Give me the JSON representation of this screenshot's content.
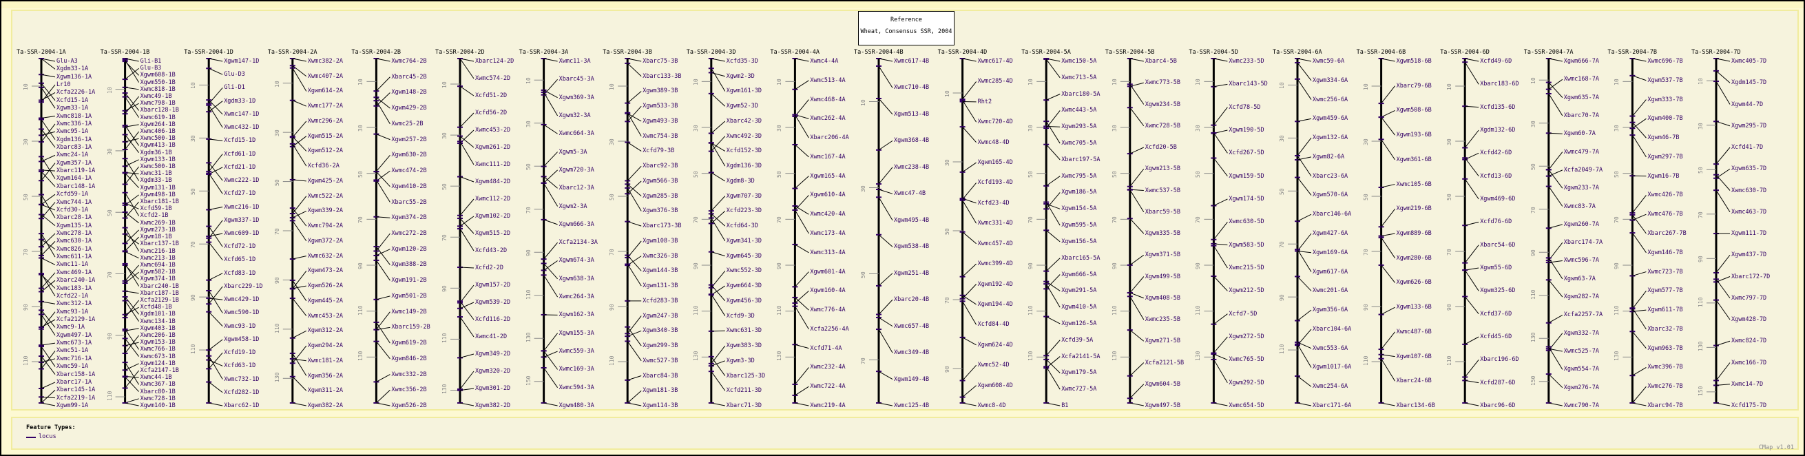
{
  "reference": {
    "title": "Reference",
    "map_set": "Wheat, Consensus SSR, 2004"
  },
  "legend": {
    "title": "Feature Types:",
    "items": [
      {
        "label": "locus",
        "color": "#330066"
      }
    ]
  },
  "footer": "CMap v1.01",
  "colors": {
    "locus_text": "#330066",
    "background": "#f6f3dd",
    "border": "#f1ec9e"
  },
  "maps": [
    {
      "name": "Ta-SSR-2004-1A",
      "length_cm": 125,
      "loci": [
        "Glu-A3",
        "Xgdm33-1A",
        "Xgwm136-1A",
        "Lr10",
        "Xcfa2226-1A",
        "Xcfd15-1A",
        "Xgwm33-1A",
        "Xwmc818-1A",
        "Xwmc336-1A",
        "Xwmc95-1A",
        "Xgdm136-1A",
        "Xbarc83-1A",
        "Xwmc24-1A",
        "Xgwm357-1A",
        "Xbarc119-1A",
        "Xgwm164-1A",
        "Xbarc148-1A",
        "Xcfd59-1A",
        "Xwmc744-1A",
        "Xcfd30-1A",
        "Xbarc28-1A",
        "Xgwm135-1A",
        "Xwmc278-1A",
        "Xwmc630-1A",
        "Xwmc826-1A",
        "Xwmc611-1A",
        "Xwmc11-1A",
        "Xwmc469-1A",
        "Xbarc240-1A",
        "Xwmc183-1A",
        "Xcfd22-1A",
        "Xwmc312-1A",
        "Xwmc93-1A",
        "Xcfa2129-1A",
        "Xwmc9-1A",
        "Xgwm497-1A",
        "Xwmc673-1A",
        "Xwmc51-1A",
        "Xwmc716-1A",
        "Xwmc59-1A",
        "Xbarc158-1A",
        "Xbarc17-1A",
        "Xbarc145-1A",
        "Xcfa2219-1A",
        "Xgwm99-1A"
      ]
    },
    {
      "name": "Ta-SSR-2004-1B",
      "length_cm": 112,
      "loci": [
        "Gli-B1",
        "Glu-B3",
        "Xgwm608-1B",
        "Xgwm550-1B",
        "Xwmc818-1B",
        "Xwmc49-1B",
        "Xwmc798-1B",
        "Xbarc128-1B",
        "Xwmc619-1B",
        "Xgwm264-1B",
        "Xwmc406-1B",
        "Xwmc500-1B",
        "Xgwm413-1B",
        "Xgdm36-1B",
        "Xgwm133-1B",
        "Xwmc500-1B",
        "Xwmc31-1B",
        "Xgdm33-1B",
        "Xgwm131-1B",
        "Xgwm498-1B",
        "Xbarc181-1B",
        "Xcfd59-1B",
        "Xcfd2-1B",
        "Xwmc269-1B",
        "Xgwm273-1B",
        "Xgwm18-1B",
        "Xbarc137-1B",
        "Xwmc216-1B",
        "Xwmc213-1B",
        "Xwmc694-1B",
        "Xgwm582-1B",
        "Xgwm374-1B",
        "Xbarc240-1B",
        "Xbarc187-1B",
        "Xcfa2129-1B",
        "Xcfd48-1B",
        "Xgdm101-1B",
        "Xwmc134-1B",
        "Xgwm403-1B",
        "Xwmc206-1B",
        "Xgwm153-1B",
        "Xwmc766-1B",
        "Xwmc673-1B",
        "Xgwm124-1B",
        "Xcfa2147-1B",
        "Xwmc44-1B",
        "Xwmc367-1B",
        "Xbarc80-1B",
        "Xwmc728-1B",
        "Xgwm140-1B"
      ]
    },
    {
      "name": "Ta-SSR-2004-1D",
      "length_cm": 130,
      "loci": [
        "Xgwm147-1D",
        "Glu-D3",
        "Gli-D1",
        "Xgdm33-1D",
        "Xwmc147-1D",
        "Xwmc432-1D",
        "Xcfd15-1D",
        "Xcfd61-1D",
        "Xcfd21-1D",
        "Xwmc222-1D",
        "Xcfd27-1D",
        "Xwmc216-1D",
        "Xgwm337-1D",
        "Xwmc609-1D",
        "Xcfd72-1D",
        "Xcfd65-1D",
        "Xcfd83-1D",
        "Xbarc229-1D",
        "Xwmc429-1D",
        "Xwmc590-1D",
        "Xwmc93-1D",
        "Xgwm458-1D",
        "Xcfd19-1D",
        "Xcfd63-1D",
        "Xwmc732-1D",
        "Xcfd282-1D",
        "Xbarc62-1D"
      ]
    },
    {
      "name": "Ta-SSR-2004-2A",
      "length_cm": 140,
      "loci": [
        "Xwmc382-2A",
        "Xwmc407-2A",
        "Xgwm614-2A",
        "Xwmc177-2A",
        "Xwmc296-2A",
        "Xgwm515-2A",
        "Xgwm512-2A",
        "Xcfd36-2A",
        "Xgwm425-2A",
        "Xwmc522-2A",
        "Xgwm339-2A",
        "Xwmc794-2A",
        "Xgwm372-2A",
        "Xwmc632-2A",
        "Xgwm473-2A",
        "Xgwm526-2A",
        "Xgwm445-2A",
        "Xwmc453-2A",
        "Xgwm312-2A",
        "Xgwm294-2A",
        "Xwmc181-2A",
        "Xgwm356-2A",
        "Xgwm311-2A",
        "Xgwm382-2A"
      ]
    },
    {
      "name": "Ta-SSR-2004-2B",
      "length_cm": 150,
      "loci": [
        "Xwmc764-2B",
        "Xbarc45-2B",
        "Xgwm148-2B",
        "Xgwm429-2B",
        "Xwmc25-2B",
        "Xgwm257-2B",
        "Xgwm630-2B",
        "Xwmc474-2B",
        "Xgwm410-2B",
        "Xbarc55-2B",
        "Xgwm374-2B",
        "Xwmc272-2B",
        "Xgwm120-2B",
        "Xgwm388-2B",
        "Xgwm191-2B",
        "Xgwm501-2B",
        "Xwmc149-2B",
        "Xbarc159-2B",
        "Xgwm619-2B",
        "Xgwm846-2B",
        "Xwmc332-2B",
        "Xwmc356-2B",
        "Xgwm526-2B"
      ]
    },
    {
      "name": "Ta-SSR-2004-2D",
      "length_cm": 135,
      "loci": [
        "Xbarc124-2D",
        "Xwmc574-2D",
        "Xcfd51-2D",
        "Xcfd56-2D",
        "Xwmc453-2D",
        "Xgwm261-2D",
        "Xwmc111-2D",
        "Xgwm484-2D",
        "Xwmc112-2D",
        "Xgwm102-2D",
        "Xgwm515-2D",
        "Xcfd43-2D",
        "Xcfd2-2D",
        "Xgwm157-2D",
        "Xgwm539-2D",
        "Xcfd116-2D",
        "Xwmc41-2D",
        "Xgwm349-2D",
        "Xgwm320-2D",
        "Xgwm301-2D",
        "Xgwm382-2D"
      ]
    },
    {
      "name": "Ta-SSR-2004-3A",
      "length_cm": 160,
      "loci": [
        "Xwmc11-3A",
        "Xbarc45-3A",
        "Xgwm369-3A",
        "Xgwm32-3A",
        "Xwmc664-3A",
        "Xgwm5-3A",
        "Xgwm720-3A",
        "Xbarc12-3A",
        "Xgwm2-3A",
        "Xgwm666-3A",
        "Xcfa2134-3A",
        "Xgwm674-3A",
        "Xgwm638-3A",
        "Xwmc264-3A",
        "Xgwm162-3A",
        "Xgwm155-3A",
        "Xwmc559-3A",
        "Xwmc169-3A",
        "Xwmc594-3A",
        "Xgwm480-3A"
      ]
    },
    {
      "name": "Ta-SSR-2004-3B",
      "length_cm": 125,
      "loci": [
        "Xbarc75-3B",
        "Xbarc133-3B",
        "Xgwm389-3B",
        "Xgwm533-3B",
        "Xgwm493-3B",
        "Xwmc754-3B",
        "Xcfd79-3B",
        "Xbarc92-3B",
        "Xgwm566-3B",
        "Xgwm285-3B",
        "Xgwm376-3B",
        "Xbarc173-3B",
        "Xgwm108-3B",
        "Xwmc326-3B",
        "Xgwm144-3B",
        "Xgwm131-3B",
        "Xcfd283-3B",
        "Xgwm247-3B",
        "Xgwm340-3B",
        "Xgwm299-3B",
        "Xwmc527-3B",
        "Xbarc84-3B",
        "Xgwm181-3B",
        "Xgwm114-3B"
      ]
    },
    {
      "name": "Ta-SSR-2004-3D",
      "length_cm": 150,
      "loci": [
        "Xcfd35-3D",
        "Xgwm2-3D",
        "Xgwm161-3D",
        "Xgwm52-3D",
        "Xbarc42-3D",
        "Xwmc492-3D",
        "Xcfd152-3D",
        "Xgdm136-3D",
        "Xgdm8-3D",
        "Xgwm707-3D",
        "Xcfd223-3D",
        "Xcfd64-3D",
        "Xgwm341-3D",
        "Xgwm645-3D",
        "Xwmc552-3D",
        "Xgwm664-3D",
        "Xgwm456-3D",
        "Xcfd9-3D",
        "Xwmc631-3D",
        "Xgwm383-3D",
        "Xgwm3-3D",
        "Xbarc125-3D",
        "Xcfd211-3D",
        "Xbarc71-3D"
      ]
    },
    {
      "name": "Ta-SSR-2004-4A",
      "length_cm": 150,
      "loci": [
        "Xwmc4-4A",
        "Xwmc513-4A",
        "Xwmc468-4A",
        "Xwmc262-4A",
        "Xbarc206-4A",
        "Xwmc167-4A",
        "Xgwm165-4A",
        "Xgwm610-4A",
        "Xwmc420-4A",
        "Xwmc173-4A",
        "Xwmc313-4A",
        "Xgwm601-4A",
        "Xgwm160-4A",
        "Xwmc776-4A",
        "Xcfa2256-4A",
        "Xcfd71-4A",
        "Xwmc232-4A",
        "Xwmc722-4A",
        "Xwmc219-4A"
      ]
    },
    {
      "name": "Ta-SSR-2004-4B",
      "length_cm": 80,
      "loci": [
        "Xwmc617-4B",
        "Xwmc710-4B",
        "Xgwm513-4B",
        "Xgwm368-4B",
        "Xwmc238-4B",
        "Xwmc47-4B",
        "Xgwm495-4B",
        "Xgwm538-4B",
        "Xgwm251-4B",
        "Xbarc20-4B",
        "Xwmc657-4B",
        "Xwmc349-4B",
        "Xgwm149-4B",
        "Xwmc125-4B"
      ]
    },
    {
      "name": "Ta-SSR-2004-4D",
      "length_cm": 100,
      "loci": [
        "Xwmc617-4D",
        "Xwmc285-4D",
        "Rht2",
        "Xwmc720-4D",
        "Xwmc48-4D",
        "Xgwm165-4D",
        "Xcfd193-4D",
        "Xcfd23-4D",
        "Xwmc331-4D",
        "Xwmc457-4D",
        "Xwmc399-4D",
        "Xgwm192-4D",
        "Xgwm194-4D",
        "Xcfd84-4D",
        "Xgwm624-4D",
        "Xwmc52-4D",
        "Xgwm608-4D",
        "Xwmc8-4D"
      ]
    },
    {
      "name": "Ta-SSR-2004-5A",
      "length_cm": 150,
      "loci": [
        "Xwmc150-5A",
        "Xwmc713-5A",
        "Xbarc180-5A",
        "Xwmc443-5A",
        "Xgwm293-5A",
        "Xwmc705-5A",
        "Xbarc197-5A",
        "Xwmc795-5A",
        "Xgwm186-5A",
        "Xgwm154-5A",
        "Xgwm595-5A",
        "Xgwm156-5A",
        "Xbarc165-5A",
        "Xgwm666-5A",
        "Xgwm291-5A",
        "Xgwm410-5A",
        "Xgwm126-5A",
        "Xcfd39-5A",
        "Xcfa2141-5A",
        "Xgwm179-5A",
        "Xwmc727-5A",
        "B1"
      ]
    },
    {
      "name": "Ta-SSR-2004-5B",
      "length_cm": 150,
      "loci": [
        "Xbarc4-5B",
        "Xwmc773-5B",
        "Xgwm234-5B",
        "Xwmc728-5B",
        "Xcfd20-5B",
        "Xgwm213-5B",
        "Xwmc537-5B",
        "Xbarc59-5B",
        "Xgwm335-5B",
        "Xgwm371-5B",
        "Xgwm499-5B",
        "Xgwm408-5B",
        "Xwmc235-5B",
        "Xgwm271-5B",
        "Xcfa2121-5B",
        "Xgwm604-5B",
        "Xgwm497-5B"
      ]
    },
    {
      "name": "Ta-SSR-2004-5D",
      "length_cm": 150,
      "loci": [
        "Xwmc233-5D",
        "Xbarc143-5D",
        "Xcfd78-5D",
        "Xgwm190-5D",
        "Xcfd267-5D",
        "Xgwm159-5D",
        "Xgwm174-5D",
        "Xwmc630-5D",
        "Xgwm583-5D",
        "Xwmc215-5D",
        "Xgwm212-5D",
        "Xcfd7-5D",
        "Xgwm272-5D",
        "Xwmc765-5D",
        "Xgwm292-5D",
        "Xwmc654-5D"
      ]
    },
    {
      "name": "Ta-SSR-2004-6A",
      "length_cm": 130,
      "loci": [
        "Xwmc59-6A",
        "Xgwm334-6A",
        "Xwmc256-6A",
        "Xgwm459-6A",
        "Xgwm132-6A",
        "Xgwm82-6A",
        "Xbarc23-6A",
        "Xgwm570-6A",
        "Xbarc146-6A",
        "Xgwm427-6A",
        "Xgwm169-6A",
        "Xgwm617-6A",
        "Xwmc201-6A",
        "Xgwm356-6A",
        "Xbarc104-6A",
        "Xwmc553-6A",
        "Xgwm1017-6A",
        "Xwmc254-6A",
        "Xbarc171-6A"
      ]
    },
    {
      "name": "Ta-SSR-2004-6B",
      "length_cm": 125,
      "loci": [
        "Xgwm518-6B",
        "Xbarc79-6B",
        "Xgwm508-6B",
        "Xgwm193-6B",
        "Xgwm361-6B",
        "Xwmc105-6B",
        "Xgwm219-6B",
        "Xgwm889-6B",
        "Xgwm280-6B",
        "Xgwm626-6B",
        "Xgwm133-6B",
        "Xwmc487-6B",
        "Xgwm107-6B",
        "Xbarc24-6B",
        "Xbarc134-6B"
      ]
    },
    {
      "name": "Ta-SSR-2004-6D",
      "length_cm": 125,
      "loci": [
        "Xcfd49-6D",
        "Xbarc183-6D",
        "Xcfd135-6D",
        "Xgdm132-6D",
        "Xcfd42-6D",
        "Xcfd13-6D",
        "Xgwm469-6D",
        "Xcfd76-6D",
        "Xbarc54-6D",
        "Xgwm55-6D",
        "Xgwm325-6D",
        "Xcfd37-6D",
        "Xcfd45-6D",
        "Xbarc196-6D",
        "Xcfd287-6D",
        "Xbarc96-6D"
      ]
    },
    {
      "name": "Ta-SSR-2004-7A",
      "length_cm": 160,
      "loci": [
        "Xgwm666-7A",
        "Xwmc168-7A",
        "Xgwm635-7A",
        "Xbarc70-7A",
        "Xgwm60-7A",
        "Xwmc479-7A",
        "Xcfa2049-7A",
        "Xgwm233-7A",
        "Xwmc83-7A",
        "Xgwm260-7A",
        "Xbarc174-7A",
        "Xwmc596-7A",
        "Xgwm63-7A",
        "Xgwm282-7A",
        "Xcfa2257-7A",
        "Xgwm332-7A",
        "Xwmc525-7A",
        "Xgwm554-7A",
        "Xgwm276-7A",
        "Xwmc790-7A"
      ]
    },
    {
      "name": "Ta-SSR-2004-7B",
      "length_cm": 150,
      "loci": [
        "Xwmc696-7B",
        "Xgwm537-7B",
        "Xgwm333-7B",
        "Xgwm400-7B",
        "Xgwm46-7B",
        "Xgwm297-7B",
        "Xgwm16-7B",
        "Xwmc426-7B",
        "Xwmc476-7B",
        "Xbarc267-7B",
        "Xgwm146-7B",
        "Xwmc723-7B",
        "Xgwm577-7B",
        "Xgwm611-7B",
        "Xbarc32-7B",
        "Xgwm963-7B",
        "Xwmc396-7B",
        "Xwmc276-7B",
        "Xbarc94-7B"
      ]
    },
    {
      "name": "Ta-SSR-2004-7D",
      "length_cm": 155,
      "loci": [
        "Xwmc405-7D",
        "Xgdm145-7D",
        "Xgwm44-7D",
        "Xgwm295-7D",
        "Xcfd41-7D",
        "Xgwm635-7D",
        "Xwmc630-7D",
        "Xwmc463-7D",
        "Xgwm111-7D",
        "Xgwm437-7D",
        "Xbarc172-7D",
        "Xwmc797-7D",
        "Xgwm428-7D",
        "Xwmc824-7D",
        "Xwmc166-7D",
        "Xwmc14-7D",
        "Xcfd175-7D"
      ]
    }
  ]
}
